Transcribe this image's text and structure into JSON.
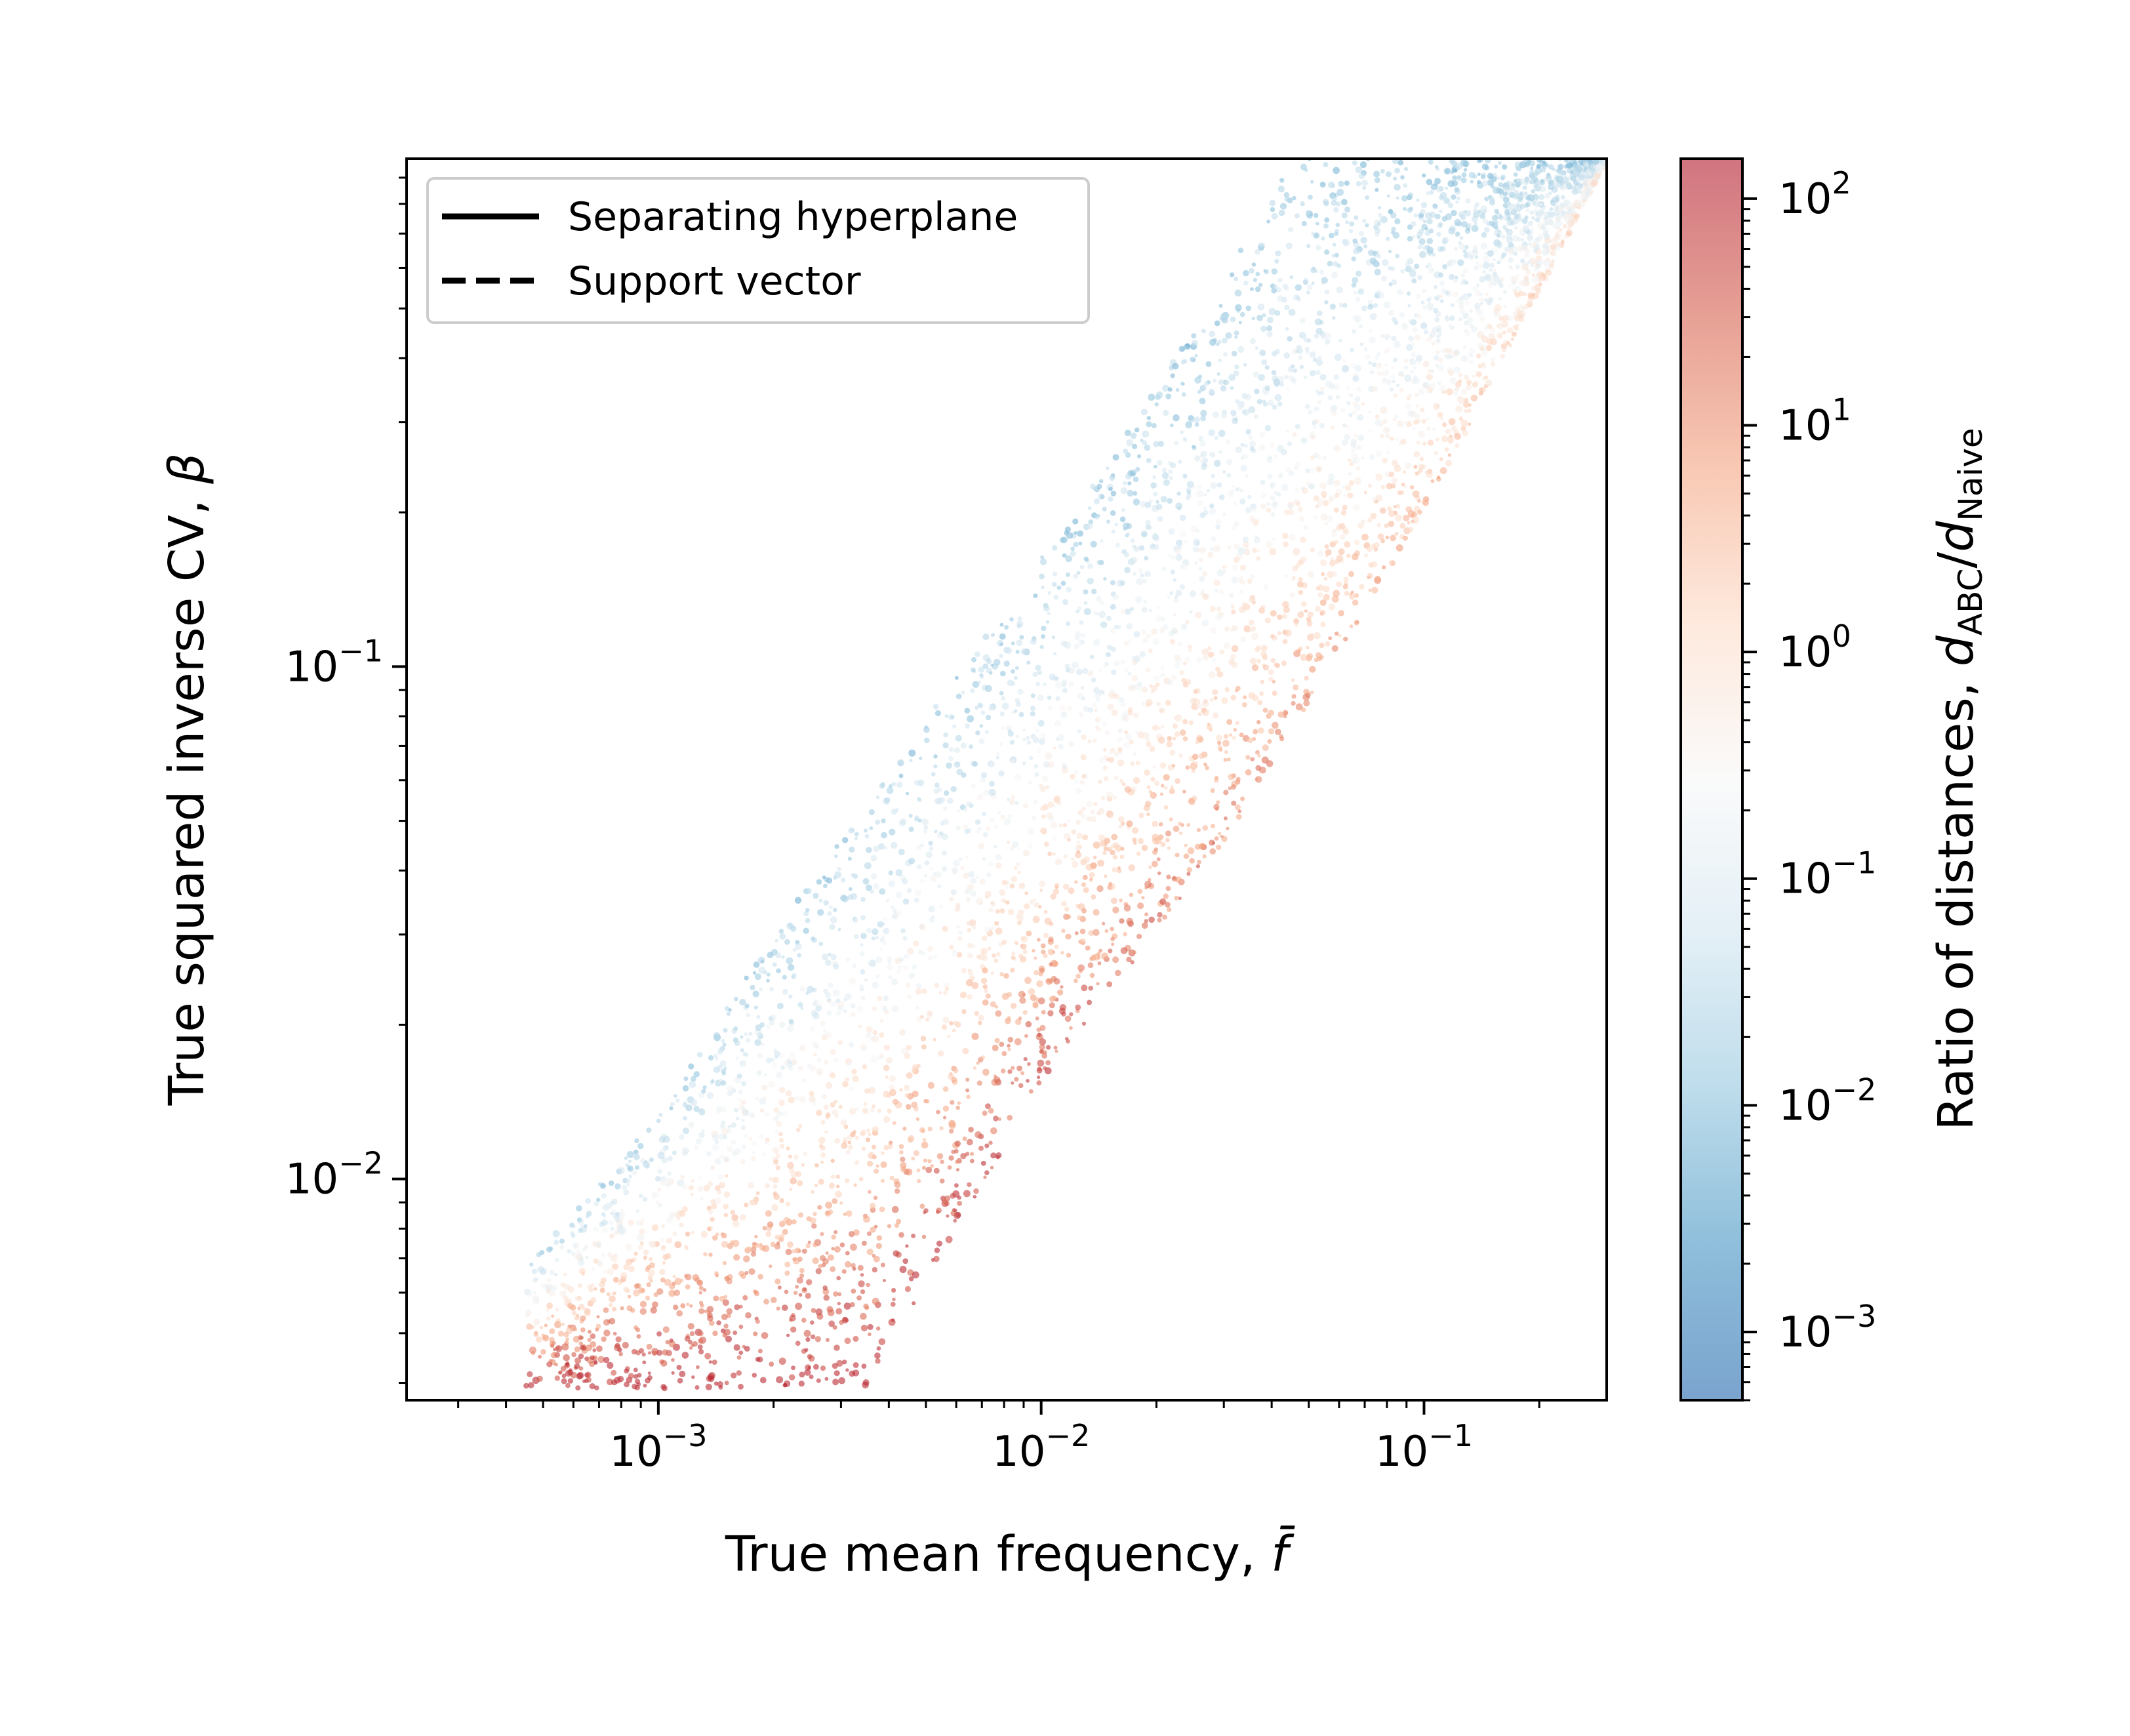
{
  "chart_data": {
    "type": "scatter",
    "title": "",
    "xlabel": "True mean frequency, ",
    "xlabel_symbol": "f̄",
    "ylabel": "True squared inverse CV, ",
    "ylabel_symbol": "β",
    "xscale": "log",
    "yscale": "log",
    "xlim": [
      0.00022,
      0.3
    ],
    "ylim": [
      0.0037,
      0.98
    ],
    "x_ticks": [
      {
        "value": 0.001,
        "base": "10",
        "exp": "−3"
      },
      {
        "value": 0.01,
        "base": "10",
        "exp": "−2"
      },
      {
        "value": 0.1,
        "base": "10",
        "exp": "−1"
      }
    ],
    "y_ticks": [
      {
        "value": 0.01,
        "base": "10",
        "exp": "−2"
      },
      {
        "value": 0.1,
        "base": "10",
        "exp": "−1"
      }
    ],
    "legend": {
      "placement": "top-left",
      "entries": [
        {
          "label": "Separating hyperplane",
          "style": "solid"
        },
        {
          "label": "Support vector",
          "style": "dashed"
        }
      ]
    },
    "colorbar": {
      "label_prefix": "Ratio of distances, ",
      "label_num": "d",
      "label_num_sub": "ABC",
      "label_den": "d",
      "label_den_sub": "Naive",
      "scale": "log",
      "range": [
        0.0005,
        150
      ],
      "colormap": "RdBu_r",
      "ticks": [
        {
          "value": 0.001,
          "base": "10",
          "exp": "−3"
        },
        {
          "value": 0.01,
          "base": "10",
          "exp": "−2"
        },
        {
          "value": 0.1,
          "base": "10",
          "exp": "−1"
        },
        {
          "value": 1,
          "base": "10",
          "exp": "0"
        },
        {
          "value": 10,
          "base": "10",
          "exp": "1"
        },
        {
          "value": 100,
          "base": "10",
          "exp": "2"
        }
      ],
      "stops": [
        "#2166ac",
        "#4393c3",
        "#92c5de",
        "#d1e5f0",
        "#f7f7f7",
        "#fddbc7",
        "#f4a582",
        "#d6604d",
        "#b2182b"
      ]
    },
    "point_cloud": {
      "description_ratio_trend": "ratio increases toward lower-left / right edge, decreases toward upper-left edge",
      "count": 5200,
      "lower_edge": [
        [
          0.0035,
          0.0039
        ],
        [
          0.01,
          0.0155
        ],
        [
          0.03,
          0.045
        ],
        [
          0.1,
          0.2
        ],
        [
          0.3,
          0.97
        ]
      ],
      "upper_edge": [
        [
          0.00045,
          0.0067
        ],
        [
          0.001,
          0.0135
        ],
        [
          0.002,
          0.03
        ],
        [
          0.006,
          0.095
        ],
        [
          0.015,
          0.25
        ],
        [
          0.028,
          0.52
        ],
        [
          0.045,
          0.98
        ]
      ]
    }
  }
}
